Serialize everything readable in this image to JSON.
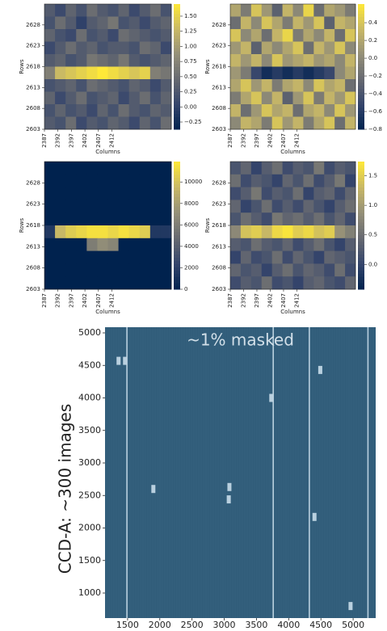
{
  "chart_data": [
    {
      "type": "heatmap",
      "xlabel": "Columns",
      "ylabel": "Rows",
      "xlim": [
        2387,
        2434
      ],
      "ylim": [
        2603,
        2633
      ],
      "xticks": [
        2387,
        2392,
        2397,
        2402,
        2407,
        2412
      ],
      "yticks": [
        2603,
        2608,
        2613,
        2618,
        2623,
        2628
      ],
      "zlim": [
        -0.37,
        1.7
      ],
      "zticks": [
        {
          "value": -0.25,
          "label": "−0.25"
        },
        {
          "value": 0,
          "label": "0.00"
        },
        {
          "value": 0.25,
          "label": "0.25"
        },
        {
          "value": 0.5,
          "label": "0.50"
        },
        {
          "value": 0.75,
          "label": "0.75"
        },
        {
          "value": 1,
          "label": "1.00"
        },
        {
          "value": 1.25,
          "label": "1.25"
        },
        {
          "value": 1.5,
          "label": "1.50"
        }
      ],
      "colormap": [
        "#00224e",
        "#35456c",
        "#666970",
        "#948f78",
        "#c8b866",
        "#fee838"
      ],
      "z": [
        [
          0.3,
          0.1,
          0.4,
          0.2,
          0.5,
          0.3,
          0.2,
          0.4,
          0.1,
          0.3,
          0.5,
          0.2
        ],
        [
          0.2,
          0.5,
          0.3,
          0.0,
          0.3,
          0.4,
          0.6,
          0.2,
          0.3,
          0.1,
          0.3,
          0.4
        ],
        [
          0.4,
          0.2,
          0.1,
          0.5,
          0.2,
          0.3,
          0.1,
          0.5,
          0.4,
          0.3,
          0.2,
          0.3
        ],
        [
          0.1,
          0.3,
          0.5,
          0.3,
          0.4,
          0.2,
          0.3,
          0.3,
          0.2,
          0.5,
          0.4,
          0.1
        ],
        [
          0.3,
          0.4,
          0.2,
          0.3,
          0.6,
          0.5,
          0.4,
          0.6,
          0.3,
          0.2,
          0.3,
          0.4
        ],
        [
          0.7,
          1.3,
          1.4,
          1.5,
          1.6,
          1.7,
          1.6,
          1.5,
          1.4,
          1.5,
          0.7,
          0.6
        ],
        [
          0.2,
          0.3,
          0.4,
          0.2,
          0.5,
          0.4,
          0.3,
          0.2,
          0.4,
          0.3,
          0.1,
          0.3
        ],
        [
          0.4,
          0.1,
          0.3,
          0.5,
          0.2,
          0.3,
          0.4,
          0.1,
          0.3,
          0.5,
          0.2,
          0.4
        ],
        [
          0.2,
          0.4,
          0.2,
          0.3,
          0.1,
          0.4,
          0.2,
          0.5,
          0.3,
          0.2,
          0.4,
          0.3
        ],
        [
          0.3,
          0.2,
          0.5,
          0.1,
          0.3,
          0.2,
          0.4,
          0.3,
          0.1,
          0.4,
          0.2,
          0.5
        ]
      ]
    },
    {
      "type": "heatmap",
      "xlabel": "Columns",
      "ylabel": "Rows",
      "xlim": [
        2387,
        2434
      ],
      "ylim": [
        2603,
        2633
      ],
      "xticks": [
        2387,
        2392,
        2397,
        2402,
        2407,
        2412
      ],
      "yticks": [
        2603,
        2608,
        2613,
        2618,
        2623,
        2628
      ],
      "zlim": [
        -0.8,
        0.61
      ],
      "zticks": [
        {
          "value": -0.8,
          "label": "−0.8"
        },
        {
          "value": -0.6,
          "label": "−0.6"
        },
        {
          "value": -0.4,
          "label": "−0.4"
        },
        {
          "value": -0.2,
          "label": "−0.2"
        },
        {
          "value": 0,
          "label": "0.0"
        },
        0.2,
        0.4
      ],
      "colormap": [
        "#00224e",
        "#35456c",
        "#666970",
        "#948f78",
        "#c8b866",
        "#fee838"
      ],
      "z": [
        [
          0.2,
          -0.1,
          0.4,
          0.1,
          -0.3,
          0.3,
          0.0,
          0.5,
          -0.2,
          0.2,
          0.1,
          -0.1
        ],
        [
          -0.2,
          0.3,
          0.0,
          0.4,
          0.2,
          -0.1,
          0.3,
          0.1,
          0.4,
          -0.3,
          0.3,
          0.2
        ],
        [
          0.4,
          0.0,
          0.2,
          -0.2,
          0.3,
          0.5,
          -0.1,
          0.2,
          0.0,
          0.3,
          -0.2,
          0.4
        ],
        [
          0.1,
          0.3,
          -0.3,
          0.2,
          0.0,
          0.2,
          0.4,
          -0.2,
          0.3,
          0.1,
          0.4,
          0.0
        ],
        [
          0.3,
          0.1,
          0.3,
          0.0,
          0.4,
          0.1,
          0.2,
          0.3,
          0.1,
          0.2,
          0.0,
          0.3
        ],
        [
          0.1,
          -0.1,
          -0.5,
          -0.7,
          -0.6,
          -0.7,
          -0.6,
          -0.7,
          -0.6,
          -0.5,
          0.0,
          0.2
        ],
        [
          0.2,
          0.4,
          0.1,
          0.3,
          -0.1,
          0.2,
          0.3,
          0.0,
          0.4,
          0.2,
          0.3,
          -0.2
        ],
        [
          -0.1,
          0.2,
          0.4,
          0.0,
          0.3,
          -0.3,
          0.1,
          0.4,
          -0.1,
          0.3,
          0.1,
          0.4
        ],
        [
          0.3,
          -0.2,
          0.1,
          0.4,
          0.2,
          0.3,
          -0.2,
          0.2,
          0.3,
          0.0,
          0.4,
          0.1
        ],
        [
          0.0,
          0.3,
          0.2,
          -0.1,
          0.4,
          0.1,
          0.3,
          -0.1,
          0.2,
          0.4,
          -0.2,
          0.3
        ]
      ]
    },
    {
      "type": "heatmap",
      "xlabel": "Columns",
      "ylabel": "Rows",
      "xlim": [
        2387,
        2434
      ],
      "ylim": [
        2603,
        2633
      ],
      "xticks": [
        2387,
        2392,
        2397,
        2402,
        2407,
        2412
      ],
      "yticks": [
        2603,
        2608,
        2613,
        2618,
        2623,
        2628
      ],
      "zlim": [
        0,
        11900
      ],
      "zticks": [
        0,
        2000,
        4000,
        6000,
        8000,
        10000
      ],
      "colormap": [
        "#00224e",
        "#35456c",
        "#666970",
        "#948f78",
        "#c8b866",
        "#fee838"
      ],
      "z": [
        [
          0,
          0,
          0,
          0,
          0,
          0,
          0,
          0,
          0,
          0,
          0,
          0
        ],
        [
          0,
          0,
          0,
          0,
          0,
          0,
          0,
          0,
          0,
          0,
          0,
          0
        ],
        [
          0,
          0,
          0,
          0,
          0,
          0,
          0,
          0,
          0,
          0,
          0,
          0
        ],
        [
          0,
          0,
          0,
          0,
          0,
          0,
          0,
          0,
          0,
          0,
          0,
          0
        ],
        [
          0,
          0,
          0,
          0,
          0,
          0,
          0,
          0,
          0,
          0,
          0,
          0
        ],
        [
          1500,
          9500,
          10500,
          11000,
          11500,
          11500,
          11000,
          11500,
          11000,
          10500,
          1500,
          1500
        ],
        [
          0,
          0,
          0,
          0,
          6000,
          7000,
          6500,
          0,
          0,
          0,
          0,
          0
        ],
        [
          0,
          0,
          0,
          0,
          0,
          0,
          0,
          0,
          0,
          0,
          0,
          0
        ],
        [
          0,
          0,
          0,
          0,
          0,
          0,
          0,
          0,
          0,
          0,
          0,
          0
        ],
        [
          0,
          0,
          0,
          0,
          0,
          0,
          0,
          0,
          0,
          0,
          0,
          0
        ]
      ]
    },
    {
      "type": "heatmap",
      "xlabel": "Columns",
      "ylabel": "Rows",
      "xlim": [
        2387,
        2434
      ],
      "ylim": [
        2603,
        2633
      ],
      "xticks": [
        2387,
        2392,
        2397,
        2402,
        2407,
        2412
      ],
      "yticks": [
        2603,
        2608,
        2613,
        2618,
        2623,
        2628
      ],
      "zlim": [
        -0.42,
        1.74
      ],
      "zticks": [
        {
          "value": 0,
          "label": "0.0"
        },
        0.5,
        {
          "value": 1,
          "label": "1.0"
        },
        1.5
      ],
      "colormap": [
        "#00224e",
        "#35456c",
        "#666970",
        "#948f78",
        "#c8b866",
        "#fee838"
      ],
      "z": [
        [
          0.2,
          0.4,
          0.0,
          0.3,
          0.5,
          0.1,
          0.3,
          0.2,
          0.6,
          0.1,
          0.3,
          0.2
        ],
        [
          0.5,
          0.1,
          0.3,
          0.2,
          0.0,
          0.4,
          0.2,
          0.5,
          0.1,
          0.3,
          0.6,
          0.0
        ],
        [
          0.1,
          0.3,
          0.6,
          0.1,
          0.3,
          0.2,
          0.5,
          0.0,
          0.3,
          0.4,
          0.1,
          0.4
        ],
        [
          0.4,
          0.0,
          0.2,
          0.5,
          0.1,
          0.3,
          0.1,
          0.4,
          0.2,
          0.0,
          0.3,
          0.5
        ],
        [
          0.2,
          0.5,
          0.3,
          0.1,
          0.6,
          0.4,
          0.5,
          0.3,
          0.5,
          0.2,
          0.4,
          0.1
        ],
        [
          0.8,
          1.4,
          1.5,
          1.3,
          1.6,
          1.7,
          1.5,
          1.6,
          1.4,
          1.5,
          0.9,
          0.7
        ],
        [
          0.3,
          0.2,
          0.5,
          0.3,
          0.2,
          0.4,
          0.1,
          0.3,
          0.5,
          0.2,
          0.0,
          0.3
        ],
        [
          0.0,
          0.4,
          0.1,
          0.2,
          0.5,
          0.1,
          0.4,
          0.2,
          0.0,
          0.4,
          0.3,
          0.2
        ],
        [
          0.4,
          0.2,
          0.3,
          0.0,
          0.3,
          0.5,
          0.2,
          0.4,
          0.3,
          0.1,
          0.5,
          0.1
        ],
        [
          0.1,
          0.3,
          0.2,
          0.5,
          0.1,
          0.2,
          0.0,
          0.3,
          0.4,
          0.2,
          0.1,
          0.4
        ]
      ]
    },
    {
      "type": "image",
      "annotation": "~1% masked",
      "ylabel": "CCD-A:  ~300 images",
      "xlim": [
        1150,
        5350
      ],
      "ylim": [
        615,
        5087
      ],
      "xticks": [
        1500,
        2000,
        2500,
        3000,
        3500,
        4000,
        4500,
        5000
      ],
      "yticks": [
        1000,
        1500,
        2000,
        2500,
        3000,
        3500,
        4000,
        4500,
        5000
      ],
      "image_color": "#315d7a",
      "mask_color": "#b9d0df",
      "masked_columns": [
        1490,
        3760,
        4320,
        5230
      ],
      "masked_spots": {
        "x": [
          1360,
          1460,
          1900,
          3080,
          3070,
          3730,
          4490,
          4400,
          4960
        ],
        "y": [
          4570,
          4570,
          2600,
          2630,
          2440,
          4000,
          4430,
          2170,
          800
        ]
      }
    }
  ]
}
